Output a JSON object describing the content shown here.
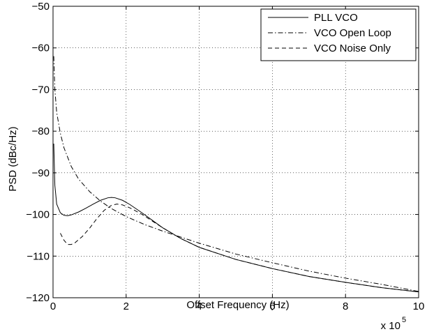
{
  "chart_data": {
    "type": "line",
    "title": "",
    "xlabel": "Offset Frequency (Hz)",
    "ylabel": "PSD (dBc/Hz)",
    "x_exponent_label": "x 10",
    "x_exponent_power": "5",
    "xlim": [
      0,
      10
    ],
    "ylim": [
      -120,
      -50
    ],
    "x_ticks": [
      0,
      2,
      4,
      6,
      8,
      10
    ],
    "y_ticks": [
      -120,
      -110,
      -100,
      -90,
      -80,
      -70,
      -60,
      -50
    ],
    "x_tick_labels": [
      "0",
      "2",
      "4",
      "6",
      "8",
      "10"
    ],
    "y_tick_labels": [
      "−120",
      "−110",
      "−100",
      "−90",
      "−80",
      "−70",
      "−60",
      "−50"
    ],
    "grid": true,
    "legend_position": "top-right",
    "series": [
      {
        "name": "PLL VCO",
        "style": "solid",
        "points": [
          [
            0.02,
            -83
          ],
          [
            0.05,
            -93
          ],
          [
            0.1,
            -97.5
          ],
          [
            0.2,
            -99.6
          ],
          [
            0.3,
            -100.2
          ],
          [
            0.4,
            -100.3
          ],
          [
            0.5,
            -100.1
          ],
          [
            0.7,
            -99.4
          ],
          [
            0.9,
            -98.5
          ],
          [
            1.1,
            -97.5
          ],
          [
            1.3,
            -96.6
          ],
          [
            1.5,
            -96.0
          ],
          [
            1.6,
            -95.9
          ],
          [
            1.7,
            -96.0
          ],
          [
            1.9,
            -96.6
          ],
          [
            2.1,
            -97.6
          ],
          [
            2.4,
            -99.4
          ],
          [
            2.7,
            -101.3
          ],
          [
            3.0,
            -103.2
          ],
          [
            3.5,
            -105.8
          ],
          [
            4.0,
            -107.9
          ],
          [
            5.0,
            -110.8
          ],
          [
            6.0,
            -113.0
          ],
          [
            7.0,
            -114.9
          ],
          [
            8.0,
            -116.3
          ],
          [
            9.0,
            -117.6
          ],
          [
            10.0,
            -118.6
          ]
        ]
      },
      {
        "name": "VCO Open Loop",
        "style": "dashdot",
        "points": [
          [
            0.02,
            -62
          ],
          [
            0.05,
            -70
          ],
          [
            0.1,
            -75.5
          ],
          [
            0.2,
            -80.5
          ],
          [
            0.3,
            -84
          ],
          [
            0.5,
            -88.5
          ],
          [
            0.7,
            -91.5
          ],
          [
            1.0,
            -94.5
          ],
          [
            1.3,
            -96.8
          ],
          [
            1.6,
            -98.6
          ],
          [
            2.0,
            -100.5
          ],
          [
            2.5,
            -102.4
          ],
          [
            3.0,
            -104.0
          ],
          [
            4.0,
            -106.9
          ],
          [
            5.0,
            -109.5
          ],
          [
            6.0,
            -111.6
          ],
          [
            7.0,
            -113.6
          ],
          [
            8.0,
            -115.3
          ],
          [
            9.0,
            -116.8
          ],
          [
            10.0,
            -118.5
          ]
        ]
      },
      {
        "name": "VCO Noise Only",
        "style": "dashed",
        "points": [
          [
            0.2,
            -104.5
          ],
          [
            0.3,
            -106.2
          ],
          [
            0.4,
            -107.2
          ],
          [
            0.5,
            -107.2
          ],
          [
            0.6,
            -106.8
          ],
          [
            0.8,
            -105.3
          ],
          [
            1.0,
            -103.3
          ],
          [
            1.2,
            -101.0
          ],
          [
            1.4,
            -99.0
          ],
          [
            1.6,
            -97.8
          ],
          [
            1.75,
            -97.5
          ],
          [
            1.9,
            -97.7
          ],
          [
            2.1,
            -98.4
          ],
          [
            2.4,
            -99.8
          ],
          [
            2.7,
            -101.5
          ],
          [
            3.0,
            -103.2
          ],
          [
            3.5,
            -105.8
          ],
          [
            4.0,
            -107.9
          ],
          [
            5.0,
            -110.8
          ],
          [
            6.0,
            -113.0
          ],
          [
            7.0,
            -114.9
          ],
          [
            8.0,
            -116.3
          ],
          [
            9.0,
            -117.6
          ],
          [
            10.0,
            -118.6
          ]
        ]
      }
    ]
  }
}
